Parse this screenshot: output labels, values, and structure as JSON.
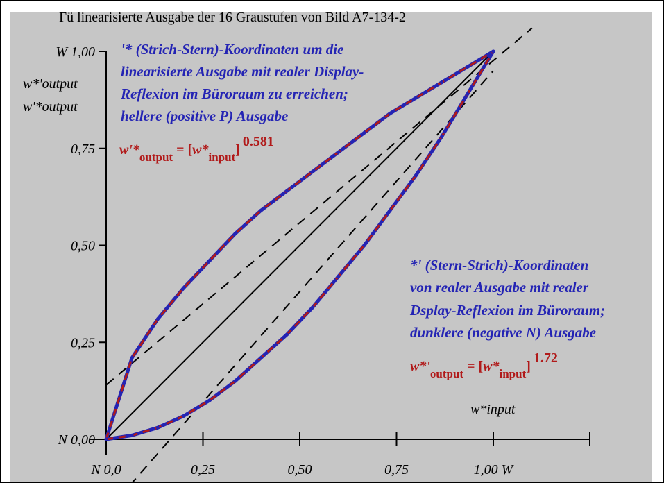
{
  "title": "Fü linearisierte Ausgabe der 16 Graustufen von Bild A7-134-2",
  "y_axis": {
    "label_lines": [
      "w*'output",
      "w'*output"
    ],
    "ticks": [
      {
        "value": 1.0,
        "label": "W 1,00"
      },
      {
        "value": 0.75,
        "label": "0,75"
      },
      {
        "value": 0.5,
        "label": "0,50"
      },
      {
        "value": 0.25,
        "label": "0,25"
      },
      {
        "value": 0.0,
        "label": "N 0,00"
      }
    ]
  },
  "x_axis": {
    "label": "w*input",
    "ticks": [
      {
        "value": 0.0,
        "label": "N  0,0"
      },
      {
        "value": 0.25,
        "label": "0,25"
      },
      {
        "value": 0.5,
        "label": "0,50"
      },
      {
        "value": 0.75,
        "label": "0,75"
      },
      {
        "value": 1.0,
        "label": "1,00  W"
      }
    ]
  },
  "annotations": {
    "upper_note": [
      "'* (Strich-Stern)-Koordinaten um die",
      "linearisierte Ausgabe mit realer Display-",
      "Reflexion im Büroraum zu erreichen;",
      "hellere (positive P) Ausgabe"
    ],
    "upper_formula": {
      "lhs_var": "w'*",
      "lhs_sub": "output",
      "eq": " = [",
      "rhs_var": "w*",
      "rhs_sub": "input",
      "close": "]",
      "exponent": "0.581"
    },
    "lower_note": [
      "*' (Stern-Strich)-Koordinaten",
      "von realer Ausgabe mit realer",
      "Dsplay-Reflexion im Büroraum;",
      "dunklere (negative N) Ausgabe"
    ],
    "lower_formula": {
      "lhs_var": "w*'",
      "lhs_sub": "output",
      "eq": " = [",
      "rhs_var": "w*",
      "rhs_sub": "input",
      "close": "]",
      "exponent": "1.72"
    }
  },
  "colors": {
    "curve_blue": "#2424b4",
    "curve_red": "#b11a1a",
    "note_blue": "#2424b4",
    "formula_red": "#b11a1a"
  },
  "chart_data": {
    "type": "line",
    "xlim": [
      0,
      1
    ],
    "ylim": [
      0,
      1
    ],
    "grid": false,
    "series": [
      {
        "name": "w'*output = [w*input]^0.581",
        "exponent": 0.581,
        "x": [
          0,
          0.0667,
          0.1333,
          0.2,
          0.2667,
          0.3333,
          0.4,
          0.4667,
          0.5333,
          0.6,
          0.6667,
          0.7333,
          0.8,
          0.8667,
          0.9333,
          1.0
        ],
        "y": [
          0,
          0.21,
          0.31,
          0.39,
          0.46,
          0.53,
          0.59,
          0.64,
          0.69,
          0.74,
          0.79,
          0.84,
          0.88,
          0.92,
          0.96,
          1.0
        ],
        "style": "blue-red dashed"
      },
      {
        "name": "w*'output = [w*input]^1.72",
        "exponent": 1.72,
        "x": [
          0,
          0.0667,
          0.1333,
          0.2,
          0.2667,
          0.3333,
          0.4,
          0.4667,
          0.5333,
          0.6,
          0.6667,
          0.7333,
          0.8,
          0.8667,
          0.9333,
          1.0
        ],
        "y": [
          0,
          0.01,
          0.03,
          0.06,
          0.1,
          0.15,
          0.21,
          0.27,
          0.34,
          0.42,
          0.5,
          0.59,
          0.68,
          0.78,
          0.89,
          1.0
        ],
        "style": "blue-red dashed"
      },
      {
        "name": "identity",
        "x": [
          0,
          1
        ],
        "y": [
          0,
          1
        ],
        "style": "solid black"
      },
      {
        "name": "upper parallel",
        "x": [
          0,
          1.1
        ],
        "y": [
          0.14,
          1.06
        ],
        "style": "dashed black"
      },
      {
        "name": "lower parallel",
        "x": [
          0.06,
          1.0
        ],
        "y": [
          -0.12,
          0.95
        ],
        "style": "dashed black"
      }
    ]
  }
}
